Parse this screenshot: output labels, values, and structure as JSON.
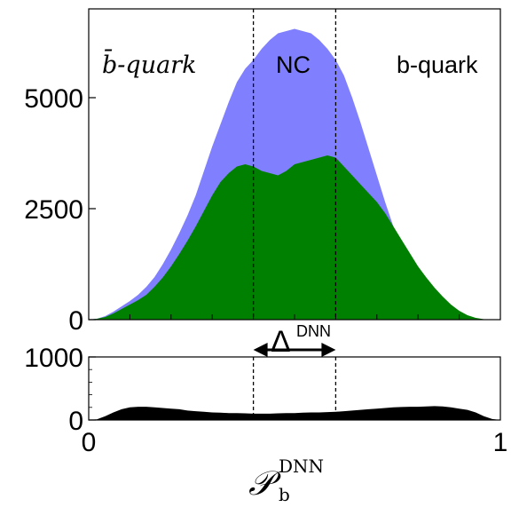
{
  "chart_data": [
    {
      "type": "histogram",
      "panel": "top",
      "title": "",
      "xlabel": "",
      "ylabel": "",
      "xlim": [
        0,
        1
      ],
      "ylim": [
        0,
        7000
      ],
      "yticks": [
        0,
        2500,
        5000
      ],
      "ytick_labels": [
        "0",
        "2500",
        "5000"
      ],
      "grid": false,
      "annotations": {
        "left_region": "b̄-quark",
        "center_region": "NC",
        "right_region": "b-quark"
      },
      "vlines": [
        0.4,
        0.6
      ],
      "curve_x": [
        0,
        0.02,
        0.04,
        0.06,
        0.08,
        0.1,
        0.12,
        0.14,
        0.16,
        0.18,
        0.2,
        0.22,
        0.24,
        0.26,
        0.28,
        0.3,
        0.32,
        0.34,
        0.36,
        0.38,
        0.4,
        0.42,
        0.44,
        0.46,
        0.48,
        0.5,
        0.52,
        0.54,
        0.56,
        0.58,
        0.6,
        0.62,
        0.64,
        0.66,
        0.68,
        0.7,
        0.72,
        0.74,
        0.76,
        0.78,
        0.8,
        0.82,
        0.84,
        0.86,
        0.88,
        0.9,
        0.92,
        0.94,
        0.96,
        0.98,
        1.0
      ],
      "series": [
        {
          "color": "#8080ff",
          "values": [
            0,
            20,
            80,
            180,
            300,
            420,
            560,
            740,
            960,
            1250,
            1580,
            1950,
            2350,
            2800,
            3350,
            3900,
            4400,
            4900,
            5350,
            5650,
            5850,
            6100,
            6300,
            6450,
            6500,
            6550,
            6500,
            6450,
            6300,
            6100,
            5850,
            5500,
            5000,
            4450,
            3850,
            3250,
            2650,
            2100,
            1650,
            1280,
            980,
            720,
            520,
            340,
            200,
            100,
            40,
            10,
            0,
            0,
            0
          ]
        },
        {
          "color": "#008000",
          "values": [
            0,
            20,
            60,
            140,
            240,
            340,
            440,
            560,
            740,
            950,
            1200,
            1480,
            1780,
            2100,
            2450,
            2800,
            3100,
            3300,
            3450,
            3500,
            3450,
            3350,
            3300,
            3250,
            3350,
            3500,
            3550,
            3600,
            3650,
            3700,
            3650,
            3450,
            3250,
            3050,
            2850,
            2650,
            2400,
            2100,
            1800,
            1500,
            1200,
            950,
            720,
            520,
            340,
            200,
            100,
            40,
            10,
            0,
            0
          ]
        }
      ]
    },
    {
      "type": "histogram",
      "panel": "bottom",
      "xlabel": "𝒫",
      "xlabel_subscript": "b",
      "xlabel_superscript": "DNN",
      "xlim": [
        0,
        1
      ],
      "ylim": [
        0,
        1000
      ],
      "yticks": [
        0,
        1000
      ],
      "ytick_labels": [
        "0",
        "1000"
      ],
      "xticks": [
        0,
        1
      ],
      "xtick_labels": [
        "0",
        "1"
      ],
      "vlines": [
        0.4,
        0.6
      ],
      "annotation": {
        "symbol": "Δ",
        "superscript": "DNN",
        "from": 0.4,
        "to": 0.6
      },
      "curve_x": [
        0,
        0.02,
        0.04,
        0.06,
        0.08,
        0.1,
        0.12,
        0.14,
        0.16,
        0.18,
        0.2,
        0.22,
        0.24,
        0.26,
        0.28,
        0.3,
        0.32,
        0.34,
        0.36,
        0.38,
        0.4,
        0.42,
        0.44,
        0.46,
        0.48,
        0.5,
        0.52,
        0.54,
        0.56,
        0.58,
        0.6,
        0.62,
        0.64,
        0.66,
        0.68,
        0.7,
        0.72,
        0.74,
        0.76,
        0.78,
        0.8,
        0.82,
        0.84,
        0.86,
        0.88,
        0.9,
        0.92,
        0.94,
        0.96,
        0.98,
        1.0
      ],
      "series": [
        {
          "color": "#000000",
          "values": [
            0,
            10,
            60,
            120,
            170,
            200,
            210,
            210,
            200,
            190,
            180,
            170,
            150,
            140,
            130,
            120,
            115,
            110,
            110,
            105,
            100,
            100,
            100,
            105,
            110,
            110,
            115,
            120,
            120,
            125,
            130,
            140,
            150,
            160,
            170,
            180,
            190,
            200,
            205,
            210,
            210,
            215,
            220,
            215,
            200,
            180,
            160,
            120,
            60,
            15,
            0
          ]
        }
      ]
    }
  ]
}
